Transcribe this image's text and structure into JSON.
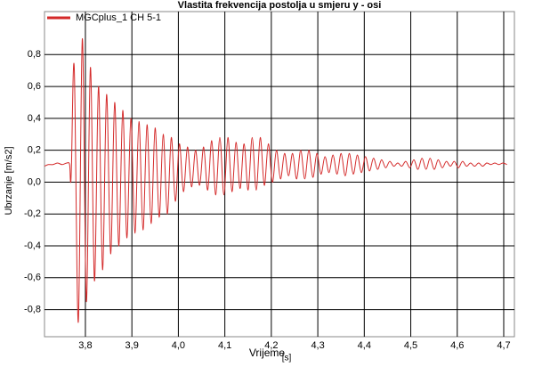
{
  "chart_data": {
    "type": "line",
    "title": "Vlastita frekvencija postolja u smjeru y - osi",
    "xlabel": "Vrijeme",
    "xunit": "[s]",
    "ylabel": "Ubrzanje [m/s2]",
    "xlim": [
      3.712,
      4.723
    ],
    "ylim": [
      -0.97,
      1.07
    ],
    "xticks": [
      {
        "value": 3.8,
        "label": "3,8"
      },
      {
        "value": 3.9,
        "label": "3,9"
      },
      {
        "value": 4.0,
        "label": "4,0"
      },
      {
        "value": 4.1,
        "label": "4,1"
      },
      {
        "value": 4.2,
        "label": "4,2"
      },
      {
        "value": 4.3,
        "label": "4,3"
      },
      {
        "value": 4.4,
        "label": "4,4"
      },
      {
        "value": 4.5,
        "label": "4,5"
      },
      {
        "value": 4.6,
        "label": "4,6"
      },
      {
        "value": 4.7,
        "label": "4,7"
      }
    ],
    "yticks": [
      {
        "value": 0.8,
        "label": "0,8"
      },
      {
        "value": 0.6,
        "label": "0,6"
      },
      {
        "value": 0.4,
        "label": "0,4"
      },
      {
        "value": 0.2,
        "label": "0,2"
      },
      {
        "value": 0.0,
        "label": "0,0"
      },
      {
        "value": -0.2,
        "label": "-0,2"
      },
      {
        "value": -0.4,
        "label": "-0,4"
      },
      {
        "value": -0.6,
        "label": "-0,6"
      },
      {
        "value": -0.8,
        "label": "-0,8"
      }
    ],
    "grid": true,
    "legend": "upper left",
    "x": [
      3.712,
      3.72,
      3.73,
      3.74,
      3.75,
      3.76,
      3.766,
      3.768,
      3.77,
      3.776,
      3.7847,
      3.7934,
      3.8021,
      3.8108,
      3.8195,
      3.8282,
      3.8369,
      3.8456,
      3.8543,
      3.863,
      3.8717,
      3.8804,
      3.8891,
      3.8978,
      3.9065,
      3.9152,
      3.9239,
      3.9326,
      3.9413,
      3.95,
      3.9587,
      3.9674,
      3.9761,
      3.9848,
      3.9935,
      4.0022,
      4.0109,
      4.0196,
      4.0283,
      4.037,
      4.0457,
      4.0544,
      4.0631,
      4.0718,
      4.0805,
      4.0892,
      4.0979,
      4.1066,
      4.1153,
      4.124,
      4.1327,
      4.1414,
      4.1501,
      4.1588,
      4.1675,
      4.1762,
      4.1849,
      4.1936,
      4.2023,
      4.211,
      4.2197,
      4.2284,
      4.2371,
      4.2458,
      4.2545,
      4.2632,
      4.2719,
      4.2806,
      4.2893,
      4.298,
      4.3067,
      4.3154,
      4.3241,
      4.3328,
      4.3415,
      4.3502,
      4.3589,
      4.3676,
      4.3763,
      4.385,
      4.3937,
      4.4024,
      4.4111,
      4.4198,
      4.4285,
      4.4372,
      4.4459,
      4.4546,
      4.4633,
      4.472,
      4.4807,
      4.4894,
      4.4981,
      4.5068,
      4.5155,
      4.5242,
      4.5329,
      4.5416,
      4.5503,
      4.559,
      4.5677,
      4.5764,
      4.5851,
      4.5938,
      4.6025,
      4.6112,
      4.6199,
      4.6286,
      4.6373,
      4.646,
      4.6547,
      4.6634,
      4.6721,
      4.6808,
      4.6895,
      4.6982,
      4.7069
    ],
    "series": [
      {
        "name": "MGCplus_1 CH 5-1",
        "color": "#d42a2a",
        "values": [
          0.1,
          0.11,
          0.11,
          0.12,
          0.11,
          0.12,
          0.11,
          0.0,
          0.1,
          0.72,
          -0.88,
          0.9,
          -0.75,
          0.72,
          -0.62,
          0.6,
          -0.55,
          0.55,
          -0.45,
          0.5,
          -0.4,
          0.45,
          -0.35,
          0.4,
          -0.32,
          0.38,
          -0.3,
          0.36,
          -0.26,
          0.34,
          -0.22,
          0.3,
          -0.2,
          0.28,
          -0.12,
          0.24,
          -0.06,
          0.22,
          -0.03,
          0.2,
          -0.02,
          0.22,
          -0.05,
          0.26,
          -0.08,
          0.28,
          -0.08,
          0.28,
          -0.06,
          0.25,
          -0.04,
          0.24,
          -0.05,
          0.28,
          -0.05,
          0.28,
          -0.02,
          0.24,
          0.0,
          0.2,
          0.02,
          0.18,
          0.04,
          0.18,
          0.02,
          0.2,
          0.02,
          0.2,
          0.03,
          0.18,
          0.05,
          0.16,
          0.06,
          0.17,
          0.05,
          0.18,
          0.04,
          0.18,
          0.05,
          0.17,
          0.06,
          0.16,
          0.07,
          0.15,
          0.08,
          0.14,
          0.09,
          0.13,
          0.1,
          0.12,
          0.1,
          0.13,
          0.09,
          0.14,
          0.08,
          0.15,
          0.08,
          0.15,
          0.08,
          0.14,
          0.09,
          0.13,
          0.1,
          0.13,
          0.09,
          0.13,
          0.1,
          0.12,
          0.1,
          0.12,
          0.1,
          0.12,
          0.11,
          0.12,
          0.11,
          0.12,
          0.11
        ]
      }
    ]
  }
}
